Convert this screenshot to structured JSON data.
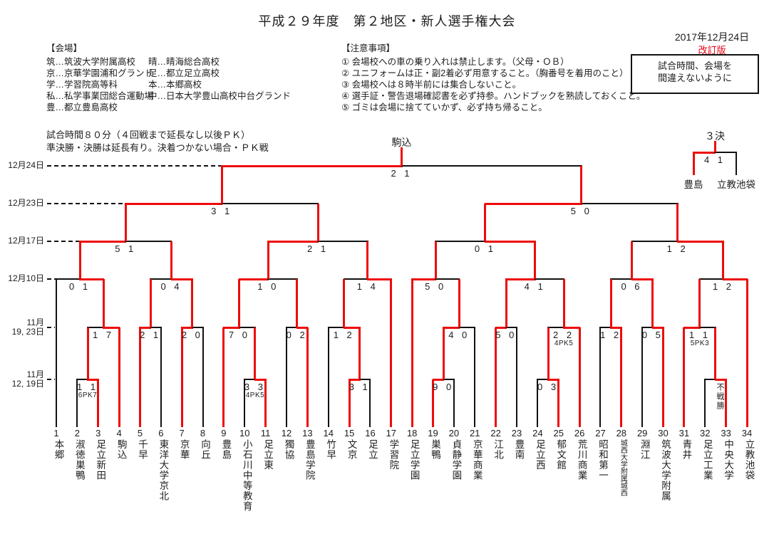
{
  "title": "平成２９年度　第２地区・新人選手権大会",
  "revision": {
    "date": "2017年12月24日",
    "label": "改訂版",
    "box_line1": "試合時間、会場を",
    "box_line2": "間違えないように"
  },
  "venues": {
    "heading": "【会場】",
    "col1": [
      "筑…筑波大学附属高校",
      "京…京華学園浦和グランド",
      "学…学習院高等科",
      "私…私学事業団総合運動場",
      "豊…都立豊島高校"
    ],
    "col2": [
      "晴…晴海総合高校",
      "足…都立足立高校",
      "本…本郷高校",
      "中…日本大学豊山高校中台グランド"
    ]
  },
  "notes": {
    "heading": "【注意事項】",
    "items": [
      "① 会場校への車の乗り入れは禁止します。（父母・ＯＢ）",
      "② ユニフォームは正・副2着必ず用意すること。（胸番号を着用のこと）",
      "③ 会場校へは８時半前には集合しないこと。",
      "④ 選手証・警告退場確認書を必ず持参。ハンドブックを熟読しておくこと。",
      "⑤ ゴミは会場に捨てていかず、必ず持ち帰ること。"
    ]
  },
  "match_time": [
    "試合時間８０分（４回戦まで延長なし以後ＰＫ）",
    "準決勝・決勝は延長有り。決着つかない場合・ＰＫ戦"
  ],
  "champion_label": "駒込",
  "rounds": [
    {
      "lines": [
        "12月24日"
      ]
    },
    {
      "lines": [
        "12月23日"
      ]
    },
    {
      "lines": [
        "12月17日"
      ]
    },
    {
      "lines": [
        "12月10日"
      ]
    },
    {
      "lines": [
        "11月",
        "19, 23日"
      ]
    },
    {
      "lines": [
        "11月",
        "12, 19日"
      ]
    }
  ],
  "colors": {
    "line_black": "#111111",
    "line_red": "#ee0a0a",
    "accent_red": "#e60012"
  },
  "teams": [
    {
      "no": 1,
      "name": "本郷"
    },
    {
      "no": 2,
      "name": "淑徳巣鴨"
    },
    {
      "no": 3,
      "name": "足立新田"
    },
    {
      "no": 4,
      "name": "駒込"
    },
    {
      "no": 5,
      "name": "千早"
    },
    {
      "no": 6,
      "name": "東洋大学京北"
    },
    {
      "no": 7,
      "name": "京華"
    },
    {
      "no": 8,
      "name": "向丘"
    },
    {
      "no": 9,
      "name": "豊島"
    },
    {
      "no": 10,
      "name": "小石川中等教育"
    },
    {
      "no": 11,
      "name": "足立東"
    },
    {
      "no": 12,
      "name": "獨協"
    },
    {
      "no": 13,
      "name": "豊島学院"
    },
    {
      "no": 14,
      "name": "竹早"
    },
    {
      "no": 15,
      "name": "文京"
    },
    {
      "no": 16,
      "name": "足立"
    },
    {
      "no": 17,
      "name": "学習院"
    },
    {
      "no": 18,
      "name": "足立学園"
    },
    {
      "no": 19,
      "name": "巣鴨"
    },
    {
      "no": 20,
      "name": "貞静学園"
    },
    {
      "no": 21,
      "name": "京華商業"
    },
    {
      "no": 22,
      "name": "江北"
    },
    {
      "no": 23,
      "name": "豊南"
    },
    {
      "no": 24,
      "name": "足立西"
    },
    {
      "no": 25,
      "name": "郁文館"
    },
    {
      "no": 26,
      "name": "荒川商業"
    },
    {
      "no": 27,
      "name": "昭和第一"
    },
    {
      "no": 28,
      "name": "城西大学附属城西",
      "small": true
    },
    {
      "no": 29,
      "name": "淵江"
    },
    {
      "no": 30,
      "name": "筑波大学附属"
    },
    {
      "no": 31,
      "name": "青井"
    },
    {
      "no": 32,
      "name": "足立工業"
    },
    {
      "no": 33,
      "name": "中央大学"
    },
    {
      "no": 34,
      "name": "立教池袋"
    }
  ],
  "matches": [
    {
      "id": "r1_23",
      "level": 1,
      "left": {
        "team": 2
      },
      "right": {
        "team": 3
      },
      "score": "1 1",
      "note": "6PK7",
      "winner": "R"
    },
    {
      "id": "r1_1011",
      "level": 1,
      "left": {
        "team": 10
      },
      "right": {
        "team": 11
      },
      "score": "3 3",
      "note": "4PK5",
      "winner": "R"
    },
    {
      "id": "r1_1516",
      "level": 1,
      "left": {
        "team": 15
      },
      "right": {
        "team": 16
      },
      "score": "3 1",
      "winner": "L"
    },
    {
      "id": "r1_1920",
      "level": 1,
      "left": {
        "team": 19
      },
      "right": {
        "team": 20
      },
      "score": "9 0",
      "winner": "L"
    },
    {
      "id": "r1_2425",
      "level": 1,
      "left": {
        "team": 24
      },
      "right": {
        "team": 25
      },
      "score": "0 3",
      "winner": "R"
    },
    {
      "id": "r1_3233",
      "level": 1,
      "left": {
        "team": 32
      },
      "right": {
        "team": 33
      },
      "walkover": "不戦勝",
      "winner": "R"
    },
    {
      "id": "r2_1",
      "level": 2,
      "left": {
        "match": "r1_23"
      },
      "right": {
        "team": 4
      },
      "score": "1 7",
      "winner": "R"
    },
    {
      "id": "r2_2",
      "level": 2,
      "left": {
        "team": 5
      },
      "right": {
        "team": 6
      },
      "score": "2 1",
      "winner": "L"
    },
    {
      "id": "r2_3",
      "level": 2,
      "left": {
        "team": 7
      },
      "right": {
        "team": 8
      },
      "score": "2 0",
      "winner": "L"
    },
    {
      "id": "r2_4",
      "level": 2,
      "left": {
        "team": 9
      },
      "right": {
        "match": "r1_1011"
      },
      "score": "7 0",
      "winner": "L"
    },
    {
      "id": "r2_5",
      "level": 2,
      "left": {
        "team": 12
      },
      "right": {
        "team": 13
      },
      "score": "0 2",
      "winner": "R"
    },
    {
      "id": "r2_6",
      "level": 2,
      "left": {
        "team": 14
      },
      "right": {
        "match": "r1_1516"
      },
      "score": "1 2",
      "winner": "R"
    },
    {
      "id": "r2_7",
      "level": 2,
      "left": {
        "match": "r1_1920"
      },
      "right": {
        "team": 21
      },
      "score": "4 0",
      "winner": "L"
    },
    {
      "id": "r2_8",
      "level": 2,
      "left": {
        "team": 22
      },
      "right": {
        "team": 23
      },
      "score": "5 0",
      "winner": "L"
    },
    {
      "id": "r2_9",
      "level": 2,
      "left": {
        "match": "r1_2425"
      },
      "right": {
        "team": 26
      },
      "score": "2 2",
      "note": "4PK5",
      "winner": "R"
    },
    {
      "id": "r2_10",
      "level": 2,
      "left": {
        "team": 27
      },
      "right": {
        "team": 28
      },
      "score": "1 2",
      "winner": "R"
    },
    {
      "id": "r2_11",
      "level": 2,
      "left": {
        "team": 29
      },
      "right": {
        "team": 30
      },
      "score": "0 5",
      "winner": "R"
    },
    {
      "id": "r2_12",
      "level": 2,
      "left": {
        "team": 31
      },
      "right": {
        "match": "r1_3233"
      },
      "score": "1 1",
      "note": "5PK3",
      "winner": "L"
    },
    {
      "id": "r3_1",
      "level": 3,
      "left": {
        "team": 1
      },
      "right": {
        "match": "r2_1"
      },
      "score": "0 1",
      "winner": "R"
    },
    {
      "id": "r3_2",
      "level": 3,
      "left": {
        "match": "r2_2"
      },
      "right": {
        "match": "r2_3"
      },
      "score": "0 4",
      "winner": "R"
    },
    {
      "id": "r3_3",
      "level": 3,
      "left": {
        "match": "r2_4"
      },
      "right": {
        "match": "r2_5"
      },
      "score": "1 0",
      "winner": "L"
    },
    {
      "id": "r3_4",
      "level": 3,
      "left": {
        "match": "r2_6"
      },
      "right": {
        "team": 17
      },
      "score": "1 4",
      "winner": "R"
    },
    {
      "id": "r3_5",
      "level": 3,
      "left": {
        "team": 18
      },
      "right": {
        "match": "r2_7"
      },
      "score": "5 0",
      "winner": "L"
    },
    {
      "id": "r3_6",
      "level": 3,
      "left": {
        "match": "r2_8"
      },
      "right": {
        "match": "r2_9"
      },
      "score": "4 1",
      "winner": "L"
    },
    {
      "id": "r3_7",
      "level": 3,
      "left": {
        "match": "r2_10"
      },
      "right": {
        "match": "r2_11"
      },
      "score": "0 6",
      "winner": "R"
    },
    {
      "id": "r3_8",
      "level": 3,
      "left": {
        "match": "r2_12"
      },
      "right": {
        "team": 34
      },
      "score": "1 2",
      "winner": "R"
    },
    {
      "id": "qf_1",
      "level": 4,
      "left": {
        "match": "r3_1"
      },
      "right": {
        "match": "r3_2"
      },
      "score": "5 1",
      "winner": "L"
    },
    {
      "id": "qf_2",
      "level": 4,
      "left": {
        "match": "r3_3"
      },
      "right": {
        "match": "r3_4"
      },
      "score": "2 1",
      "winner": "L"
    },
    {
      "id": "qf_3",
      "level": 4,
      "left": {
        "match": "r3_5"
      },
      "right": {
        "match": "r3_6"
      },
      "score": "0 1",
      "winner": "R"
    },
    {
      "id": "qf_4",
      "level": 4,
      "left": {
        "match": "r3_7"
      },
      "right": {
        "match": "r3_8"
      },
      "score": "1 2",
      "winner": "R"
    },
    {
      "id": "sf_1",
      "level": 5,
      "left": {
        "match": "qf_1"
      },
      "right": {
        "match": "qf_2"
      },
      "score": "3 1",
      "winner": "L"
    },
    {
      "id": "sf_2",
      "level": 5,
      "left": {
        "match": "qf_3"
      },
      "right": {
        "match": "qf_4"
      },
      "score": "5 0",
      "winner": "L"
    },
    {
      "id": "final",
      "level": 6,
      "left": {
        "match": "sf_1"
      },
      "right": {
        "match": "sf_2"
      },
      "score": "2 1",
      "winner": "L"
    }
  ],
  "third_place": {
    "label": "３決",
    "left": "豊島",
    "right": "立教池袋",
    "score": "4 1",
    "winner": "L"
  }
}
